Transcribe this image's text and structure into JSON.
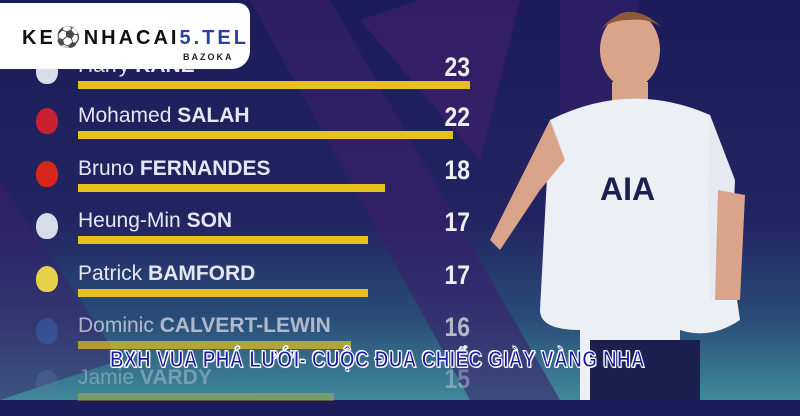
{
  "logo": {
    "text_dark": "KE",
    "text_mid": "NHACAI",
    "text_blue": "5.TEL",
    "tagline": "BAZOKA"
  },
  "scorers": [
    {
      "first": "Harry",
      "last": "KANE",
      "goals": 23,
      "crest": "tottenham-crest-icon",
      "crest_color": "#d8dbe8"
    },
    {
      "first": "Mohamed",
      "last": "SALAH",
      "goals": 22,
      "crest": "liverpool-crest-icon",
      "crest_color": "#c8202e"
    },
    {
      "first": "Bruno",
      "last": "FERNANDES",
      "goals": 18,
      "crest": "man-united-crest-icon",
      "crest_color": "#d6261c"
    },
    {
      "first": "Heung-Min",
      "last": "SON",
      "goals": 17,
      "crest": "tottenham-crest-icon",
      "crest_color": "#d8dbe8"
    },
    {
      "first": "Patrick",
      "last": "BAMFORD",
      "goals": 17,
      "crest": "leeds-crest-icon",
      "crest_color": "#e6d24a"
    },
    {
      "first": "Dominic",
      "last": "CALVERT-LEWIN",
      "goals": 16,
      "crest": "everton-crest-icon",
      "crest_color": "#3a5aa0"
    },
    {
      "first": "Jamie",
      "last": "VARDY",
      "goals": 15,
      "crest": "leicester-crest-icon",
      "crest_color": "#5a7aa0"
    }
  ],
  "headline": "BXH VUA PHÁ LƯỚI- CUỘC ĐUA CHIẾC GIÀY VÀNG NHA",
  "colors": {
    "bar": "#e8c21c",
    "background": "#1d1c5a",
    "headline": "#1a1aa0"
  }
}
